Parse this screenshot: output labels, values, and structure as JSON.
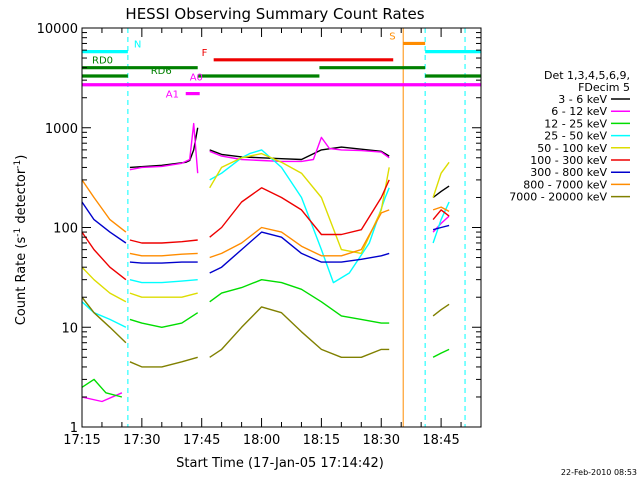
{
  "chart_data": {
    "type": "line",
    "title": "HESSI Observing Summary Count Rates",
    "xlabel": "Start Time (17-Jan-05 17:14:42)",
    "ylabel": "Count Rate (s⁻¹ detector⁻¹)",
    "ylabel_main": "Count Rate (s",
    "ylabel_sup1": "-1",
    "ylabel_mid": " detector",
    "ylabel_sup2": "-1",
    "ylabel_end": ")",
    "y_scale": "log",
    "ylim": [
      1,
      10000
    ],
    "xlim_minutes": [
      0,
      100
    ],
    "x_ticks": [
      {
        "label": "17:15",
        "min": 0
      },
      {
        "label": "17:30",
        "min": 15
      },
      {
        "label": "17:45",
        "min": 30
      },
      {
        "label": "18:00",
        "min": 45
      },
      {
        "label": "18:15",
        "min": 60
      },
      {
        "label": "18:30",
        "min": 75
      },
      {
        "label": "18:45",
        "min": 90
      }
    ],
    "y_ticks": [
      {
        "label": "1",
        "value": 1
      },
      {
        "label": "10",
        "value": 10
      },
      {
        "label": "100",
        "value": 100
      },
      {
        "label": "1000",
        "value": 1000
      },
      {
        "label": "10000",
        "value": 10000
      }
    ],
    "legend": {
      "position": "right",
      "header": [
        "Det 1,3,4,5,6,9,",
        "FDecim 5"
      ],
      "entries": [
        {
          "label": "3 - 6 keV",
          "color": "#000000"
        },
        {
          "label": "6 - 12 keV",
          "color": "#ff00ff"
        },
        {
          "label": "12 - 25 keV",
          "color": "#00dd00"
        },
        {
          "label": "25 - 50 keV",
          "color": "#00ffff"
        },
        {
          "label": "50 - 100 keV",
          "color": "#dddd00"
        },
        {
          "label": "100 - 300 keV",
          "color": "#ee0000"
        },
        {
          "label": "300 - 800 keV",
          "color": "#0000cc"
        },
        {
          "label": "800 - 7000 keV",
          "color": "#ff8c00"
        },
        {
          "label": "7000 - 20000 keV",
          "color": "#808000"
        }
      ]
    },
    "flag_bars": [
      {
        "label": "N",
        "color": "#00ffff",
        "y_value": 5800,
        "segments": [
          [
            0,
            11.5
          ],
          [
            86,
            100
          ]
        ]
      },
      {
        "label": "S",
        "color": "#ff8c00",
        "y_value": 7000,
        "segments": [
          [
            80.5,
            86
          ]
        ]
      },
      {
        "label": "F",
        "color": "#ee0000",
        "y_value": 4800,
        "segments": [
          [
            33,
            78
          ]
        ]
      },
      {
        "label": "RD0",
        "color": "#008000",
        "y_value": 4000,
        "segments": [
          [
            0,
            11.5
          ],
          [
            11.5,
            29
          ],
          [
            59.5,
            86
          ]
        ]
      },
      {
        "label": "RD6",
        "color": "#008000",
        "y_value": 3300,
        "segments": [
          [
            0,
            11.5
          ],
          [
            29,
            59.5
          ],
          [
            86,
            100
          ]
        ]
      },
      {
        "label": "A0",
        "color": "#ff00ff",
        "y_value": 2700,
        "segments": [
          [
            0,
            100
          ]
        ]
      },
      {
        "label": "A1",
        "color": "#ff00ff",
        "y_value": 2200,
        "segments": [
          [
            26,
            29.5
          ]
        ]
      }
    ],
    "series": [
      {
        "name": "3 - 6 keV",
        "color": "#000000",
        "segments": [
          {
            "x": [
              12,
              20,
              26,
              27,
              28,
              29
            ],
            "y": [
              400,
              420,
              450,
              470,
              600,
              1000
            ]
          },
          {
            "x": [
              32,
              35,
              40,
              45,
              50,
              55,
              60,
              65,
              70,
              75,
              77
            ],
            "y": [
              600,
              540,
              510,
              500,
              490,
              480,
              600,
              640,
              610,
              580,
              520
            ]
          },
          {
            "x": [
              88,
              90,
              92
            ],
            "y": [
              200,
              230,
              260
            ]
          }
        ]
      },
      {
        "name": "6 - 12 keV",
        "color": "#ff00ff",
        "segments": [
          {
            "x": [
              0,
              5,
              10
            ],
            "y": [
              2,
              1.8,
              2.2
            ]
          },
          {
            "x": [
              12,
              15,
              20,
              25,
              27,
              28,
              29
            ],
            "y": [
              380,
              400,
              410,
              440,
              480,
              1100,
              350
            ]
          },
          {
            "x": [
              32,
              35,
              40,
              45,
              50,
              55,
              58,
              60,
              62,
              65,
              70,
              75,
              77
            ],
            "y": [
              580,
              520,
              480,
              470,
              460,
              460,
              480,
              800,
              620,
              600,
              590,
              570,
              500
            ]
          },
          {
            "x": [
              88,
              90,
              92
            ],
            "y": [
              90,
              110,
              130
            ]
          }
        ]
      },
      {
        "name": "12 - 25 keV",
        "color": "#00dd00",
        "segments": [
          {
            "x": [
              0,
              3,
              6,
              10
            ],
            "y": [
              2.5,
              3,
              2.2,
              2
            ]
          },
          {
            "x": [
              12,
              15,
              20,
              25,
              29
            ],
            "y": [
              12,
              11,
              10,
              11,
              14
            ]
          },
          {
            "x": [
              32,
              35,
              40,
              45,
              50,
              55,
              60,
              65,
              70,
              75,
              77
            ],
            "y": [
              18,
              22,
              25,
              30,
              28,
              24,
              18,
              13,
              12,
              11,
              11
            ]
          },
          {
            "x": [
              88,
              90,
              92
            ],
            "y": [
              5,
              5.5,
              6
            ]
          }
        ]
      },
      {
        "name": "25 - 50 keV",
        "color": "#00ffff",
        "segments": [
          {
            "x": [
              0,
              3,
              7,
              11
            ],
            "y": [
              18,
              14,
              12,
              10
            ]
          },
          {
            "x": [
              12,
              15,
              20,
              25,
              29
            ],
            "y": [
              30,
              28,
              28,
              29,
              30
            ]
          },
          {
            "x": [
              32,
              35,
              40,
              42,
              45,
              50,
              55,
              60,
              63,
              67,
              72,
              76,
              77
            ],
            "y": [
              300,
              350,
              500,
              550,
              600,
              400,
              200,
              60,
              28,
              35,
              70,
              200,
              250
            ]
          },
          {
            "x": [
              88,
              90,
              92
            ],
            "y": [
              70,
              120,
              180
            ]
          }
        ]
      },
      {
        "name": "50 - 100 keV",
        "color": "#dddd00",
        "segments": [
          {
            "x": [
              0,
              3,
              7,
              11
            ],
            "y": [
              40,
              30,
              22,
              18
            ]
          },
          {
            "x": [
              12,
              15,
              20,
              25,
              29
            ],
            "y": [
              22,
              20,
              20,
              20,
              22
            ]
          },
          {
            "x": [
              32,
              35,
              40,
              45,
              50,
              55,
              60,
              65,
              70,
              75,
              77
            ],
            "y": [
              250,
              400,
              500,
              550,
              450,
              350,
              200,
              60,
              55,
              150,
              400
            ]
          },
          {
            "x": [
              88,
              90,
              92
            ],
            "y": [
              200,
              350,
              450
            ]
          }
        ]
      },
      {
        "name": "100 - 300 keV",
        "color": "#ee0000",
        "segments": [
          {
            "x": [
              0,
              3,
              7,
              11
            ],
            "y": [
              90,
              60,
              40,
              30
            ]
          },
          {
            "x": [
              12,
              15,
              20,
              25,
              29
            ],
            "y": [
              75,
              70,
              70,
              72,
              75
            ]
          },
          {
            "x": [
              32,
              35,
              40,
              45,
              50,
              55,
              60,
              65,
              70,
              75,
              77
            ],
            "y": [
              80,
              100,
              180,
              250,
              200,
              150,
              85,
              85,
              95,
              200,
              300
            ]
          },
          {
            "x": [
              88,
              90,
              92
            ],
            "y": [
              120,
              150,
              130
            ]
          }
        ]
      },
      {
        "name": "300 - 800 keV",
        "color": "#0000cc",
        "segments": [
          {
            "x": [
              0,
              3,
              7,
              11
            ],
            "y": [
              180,
              120,
              90,
              70
            ]
          },
          {
            "x": [
              12,
              15,
              20,
              25,
              29
            ],
            "y": [
              45,
              44,
              44,
              45,
              45
            ]
          },
          {
            "x": [
              32,
              35,
              40,
              45,
              50,
              55,
              60,
              65,
              70,
              75,
              77
            ],
            "y": [
              35,
              40,
              60,
              90,
              80,
              55,
              45,
              45,
              48,
              52,
              55
            ]
          },
          {
            "x": [
              88,
              90,
              92
            ],
            "y": [
              95,
              100,
              105
            ]
          }
        ]
      },
      {
        "name": "800 - 7000 keV",
        "color": "#ff8c00",
        "segments": [
          {
            "x": [
              0,
              3,
              7,
              11
            ],
            "y": [
              300,
              200,
              120,
              90
            ]
          },
          {
            "x": [
              12,
              15,
              20,
              25,
              29
            ],
            "y": [
              55,
              52,
              52,
              54,
              55
            ]
          },
          {
            "x": [
              32,
              35,
              40,
              45,
              50,
              55,
              60,
              65,
              70,
              75,
              77
            ],
            "y": [
              50,
              55,
              70,
              100,
              90,
              65,
              52,
              52,
              60,
              140,
              150
            ]
          },
          {
            "x": [
              88,
              90,
              92
            ],
            "y": [
              150,
              160,
              145
            ]
          }
        ]
      },
      {
        "name": "7000 - 20000 keV",
        "color": "#808000",
        "segments": [
          {
            "x": [
              0,
              3,
              7,
              11
            ],
            "y": [
              20,
              14,
              10,
              7
            ]
          },
          {
            "x": [
              12,
              15,
              20,
              25,
              29
            ],
            "y": [
              4.5,
              4,
              4,
              4.5,
              5
            ]
          },
          {
            "x": [
              32,
              35,
              40,
              45,
              50,
              55,
              60,
              65,
              70,
              75,
              77
            ],
            "y": [
              5,
              6,
              10,
              16,
              14,
              9,
              6,
              5,
              5,
              6,
              6
            ]
          },
          {
            "x": [
              88,
              90,
              92
            ],
            "y": [
              13,
              15,
              17
            ]
          }
        ]
      }
    ],
    "vertical_markers": [
      {
        "x_min": 11.5,
        "color": "#00ffff",
        "style": "dashed"
      },
      {
        "x_min": 80.5,
        "color": "#ff8c00",
        "style": "solid"
      },
      {
        "x_min": 86,
        "color": "#00ffff",
        "style": "dashed"
      },
      {
        "x_min": 96,
        "color": "#00ffff",
        "style": "dashed"
      }
    ]
  },
  "footer": {
    "timestamp": "22-Feb-2010 08:53"
  }
}
